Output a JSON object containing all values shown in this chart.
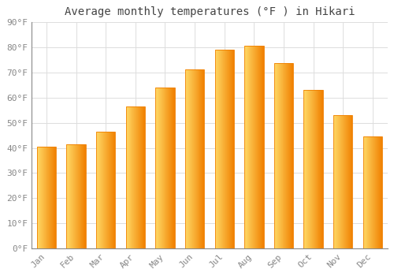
{
  "title": "Average monthly temperatures (°F ) in Hikari",
  "months": [
    "Jan",
    "Feb",
    "Mar",
    "Apr",
    "May",
    "Jun",
    "Jul",
    "Aug",
    "Sep",
    "Oct",
    "Nov",
    "Dec"
  ],
  "values": [
    40.5,
    41.5,
    46.5,
    56.5,
    64.0,
    71.0,
    79.0,
    80.5,
    73.5,
    63.0,
    53.0,
    44.5
  ],
  "bar_color_left": "#FFD966",
  "bar_color_mid": "#FFAA00",
  "bar_color_right": "#F08000",
  "background_color": "#FFFFFF",
  "grid_color": "#DDDDDD",
  "text_color": "#888888",
  "spine_color": "#888888",
  "ylim": [
    0,
    90
  ],
  "yticks": [
    0,
    10,
    20,
    30,
    40,
    50,
    60,
    70,
    80,
    90
  ],
  "ytick_labels": [
    "0°F",
    "10°F",
    "20°F",
    "30°F",
    "40°F",
    "50°F",
    "60°F",
    "70°F",
    "80°F",
    "90°F"
  ],
  "title_fontsize": 10,
  "tick_fontsize": 8,
  "bar_width": 0.65,
  "font_family": "monospace"
}
